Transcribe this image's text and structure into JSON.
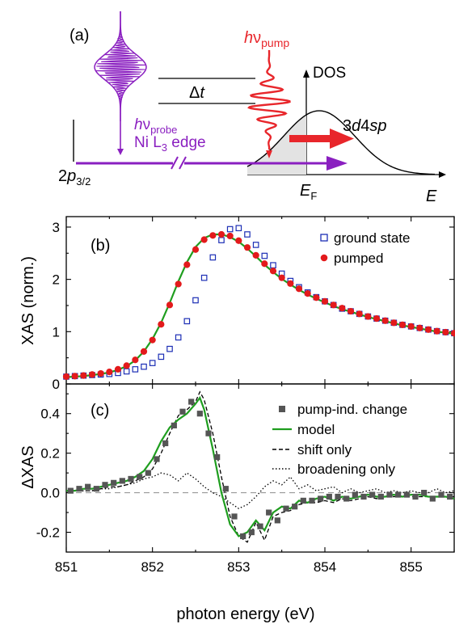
{
  "colors": {
    "pump": "#e8262b",
    "probe": "#8a1fc0",
    "model": "#1f9e1f",
    "ground": "#1c2eb5",
    "pumped_marker": "#e31a1c",
    "change_marker": "#555555",
    "shade": "#e3e3e3"
  },
  "schematic": {
    "panel": "(a)",
    "pump_label_h": "h",
    "pump_label_nu": "ν",
    "pump_label_sub": "pump",
    "probe_label_h": "h",
    "probe_label_nu": "ν",
    "probe_label_sub": "probe",
    "probe_edge_main": "Ni L",
    "probe_edge_sub": "3",
    "probe_edge_tail": " edge",
    "delay_delta": "Δ",
    "delay_t": "t",
    "dos_label": "DOS",
    "band_3": "3",
    "band_d4": "d",
    "band_4": "4",
    "band_sp": "sp",
    "core_2": "2",
    "core_p": "p",
    "core_sub": "3/2",
    "ef_main": "E",
    "ef_sub": "F",
    "e_axis": "E"
  },
  "chart_data": [
    {
      "type": "scatter",
      "panel": "(b)",
      "ylabel": "XAS (norm.)",
      "xlim": [
        851,
        855.5
      ],
      "ylim": [
        0,
        3.2
      ],
      "yticks": [
        "0",
        "1",
        "2",
        "3"
      ],
      "legend_position": "top-right",
      "series": [
        {
          "name": "ground state",
          "marker": "open-square",
          "x": [
            851.0,
            851.1,
            851.2,
            851.3,
            851.4,
            851.5,
            851.6,
            851.7,
            851.8,
            851.9,
            852.0,
            852.1,
            852.2,
            852.3,
            852.4,
            852.5,
            852.6,
            852.7,
            852.8,
            852.9,
            853.0,
            853.1,
            853.2,
            853.3,
            853.4,
            853.5,
            853.6,
            853.7,
            853.8,
            853.9,
            854.0,
            854.1,
            854.2,
            854.3,
            854.4,
            854.5,
            854.6,
            854.7,
            854.8,
            854.9,
            855.0,
            855.1,
            855.2,
            855.3,
            855.4,
            855.5
          ],
          "y": [
            0.14,
            0.15,
            0.16,
            0.17,
            0.18,
            0.19,
            0.21,
            0.24,
            0.28,
            0.33,
            0.4,
            0.52,
            0.67,
            0.89,
            1.2,
            1.6,
            2.03,
            2.42,
            2.75,
            2.96,
            2.98,
            2.86,
            2.66,
            2.45,
            2.27,
            2.11,
            1.97,
            1.85,
            1.75,
            1.66,
            1.58,
            1.51,
            1.44,
            1.39,
            1.34,
            1.29,
            1.25,
            1.21,
            1.17,
            1.13,
            1.1,
            1.07,
            1.04,
            1.01,
            0.99,
            0.97
          ]
        },
        {
          "name": "pumped",
          "marker": "filled-circle",
          "x": [
            851.0,
            851.1,
            851.2,
            851.3,
            851.4,
            851.5,
            851.6,
            851.7,
            851.8,
            851.9,
            852.0,
            852.1,
            852.2,
            852.3,
            852.4,
            852.5,
            852.6,
            852.7,
            852.8,
            852.9,
            853.0,
            853.1,
            853.2,
            853.3,
            853.4,
            853.5,
            853.6,
            853.7,
            853.8,
            853.9,
            854.0,
            854.1,
            854.2,
            854.3,
            854.4,
            854.5,
            854.6,
            854.7,
            854.8,
            854.9,
            855.0,
            855.1,
            855.2,
            855.3,
            855.4,
            855.5
          ],
          "y": [
            0.14,
            0.15,
            0.16,
            0.18,
            0.2,
            0.23,
            0.28,
            0.35,
            0.46,
            0.62,
            0.84,
            1.14,
            1.51,
            1.91,
            2.28,
            2.57,
            2.76,
            2.84,
            2.86,
            2.83,
            2.74,
            2.61,
            2.46,
            2.3,
            2.16,
            2.03,
            1.92,
            1.82,
            1.73,
            1.65,
            1.58,
            1.51,
            1.45,
            1.39,
            1.34,
            1.29,
            1.25,
            1.21,
            1.17,
            1.13,
            1.1,
            1.07,
            1.04,
            1.01,
            0.99,
            0.97
          ]
        },
        {
          "name": "model",
          "marker": "line",
          "x": [
            851.0,
            851.1,
            851.2,
            851.3,
            851.4,
            851.5,
            851.6,
            851.7,
            851.8,
            851.9,
            852.0,
            852.1,
            852.2,
            852.3,
            852.4,
            852.5,
            852.6,
            852.7,
            852.8,
            852.9,
            853.0,
            853.1,
            853.2,
            853.3,
            853.4,
            853.5,
            853.6,
            853.7,
            853.8,
            853.9,
            854.0,
            854.1,
            854.2,
            854.3,
            854.4,
            854.5,
            854.6,
            854.7,
            854.8,
            854.9,
            855.0,
            855.1,
            855.2,
            855.3,
            855.4,
            855.5
          ],
          "y": [
            0.13,
            0.14,
            0.15,
            0.17,
            0.19,
            0.22,
            0.27,
            0.34,
            0.45,
            0.62,
            0.86,
            1.17,
            1.55,
            1.96,
            2.33,
            2.62,
            2.79,
            2.86,
            2.86,
            2.81,
            2.72,
            2.59,
            2.44,
            2.28,
            2.14,
            2.01,
            1.9,
            1.8,
            1.71,
            1.63,
            1.56,
            1.49,
            1.43,
            1.38,
            1.33,
            1.28,
            1.24,
            1.2,
            1.16,
            1.12,
            1.09,
            1.06,
            1.03,
            1.0,
            0.98,
            0.96
          ]
        }
      ]
    },
    {
      "type": "line",
      "panel": "(c)",
      "xlabel": "photon energy (eV)",
      "ylabel": "ΔXAS",
      "xlim": [
        851,
        855.5
      ],
      "ylim": [
        -0.3,
        0.55
      ],
      "xticks": [
        "851",
        "852",
        "853",
        "854",
        "855"
      ],
      "yticks": [
        "-0.2",
        "0.0",
        "0.2",
        "0.4"
      ],
      "legend_position": "top-right",
      "series": [
        {
          "name": "pump-ind. change",
          "marker": "filled-square",
          "x": [
            851.05,
            851.15,
            851.25,
            851.35,
            851.45,
            851.55,
            851.65,
            851.75,
            851.85,
            851.95,
            852.05,
            852.15,
            852.25,
            852.35,
            852.45,
            852.55,
            852.65,
            852.75,
            852.85,
            852.95,
            853.05,
            853.15,
            853.25,
            853.35,
            853.45,
            853.55,
            853.65,
            853.75,
            853.85,
            853.95,
            854.05,
            854.15,
            854.25,
            854.35,
            854.45,
            854.55,
            854.65,
            854.75,
            854.85,
            854.95,
            855.05,
            855.15,
            855.25,
            855.35,
            855.45
          ],
          "y": [
            0.01,
            0.02,
            0.03,
            0.02,
            0.04,
            0.05,
            0.06,
            0.07,
            0.08,
            0.1,
            0.17,
            0.25,
            0.34,
            0.41,
            0.46,
            0.4,
            0.3,
            0.18,
            0.02,
            -0.12,
            -0.22,
            -0.2,
            -0.17,
            -0.1,
            -0.14,
            -0.08,
            -0.07,
            -0.04,
            -0.04,
            -0.03,
            -0.02,
            -0.02,
            -0.03,
            -0.01,
            -0.02,
            -0.01,
            -0.02,
            -0.01,
            -0.01,
            -0.01,
            -0.02,
            0.0,
            -0.03,
            -0.01,
            -0.02
          ]
        },
        {
          "name": "model",
          "marker": "line",
          "x": [
            851.0,
            851.1,
            851.2,
            851.3,
            851.4,
            851.5,
            851.6,
            851.7,
            851.8,
            851.9,
            852.0,
            852.1,
            852.2,
            852.3,
            852.4,
            852.5,
            852.55,
            852.6,
            852.7,
            852.8,
            852.9,
            853.0,
            853.1,
            853.2,
            853.3,
            853.4,
            853.5,
            853.6,
            853.7,
            853.8,
            853.9,
            854.0,
            854.1,
            854.2,
            854.3,
            854.4,
            854.5,
            854.6,
            854.7,
            854.8,
            854.9,
            855.0,
            855.1,
            855.2,
            855.3,
            855.4,
            855.5
          ],
          "y": [
            0.01,
            0.01,
            0.02,
            0.02,
            0.03,
            0.04,
            0.05,
            0.06,
            0.08,
            0.11,
            0.17,
            0.26,
            0.33,
            0.37,
            0.4,
            0.45,
            0.48,
            0.42,
            0.22,
            0.0,
            -0.16,
            -0.22,
            -0.2,
            -0.14,
            -0.19,
            -0.1,
            -0.07,
            -0.08,
            -0.04,
            -0.05,
            -0.03,
            -0.02,
            -0.04,
            -0.02,
            -0.03,
            -0.02,
            -0.01,
            -0.02,
            -0.02,
            -0.01,
            -0.02,
            -0.01,
            -0.01,
            -0.02,
            -0.02,
            -0.02,
            -0.03
          ]
        },
        {
          "name": "shift only",
          "marker": "dashed",
          "x": [
            851.0,
            851.1,
            851.2,
            851.3,
            851.4,
            851.5,
            851.6,
            851.7,
            851.8,
            851.9,
            852.0,
            852.1,
            852.2,
            852.3,
            852.4,
            852.5,
            852.55,
            852.6,
            852.7,
            852.8,
            852.9,
            853.0,
            853.1,
            853.2,
            853.3,
            853.4,
            853.5,
            853.6,
            853.7,
            853.8,
            853.9,
            854.0,
            854.1,
            854.2,
            854.3,
            854.4,
            854.5,
            854.6,
            854.7,
            854.8,
            854.9,
            855.0,
            855.1,
            855.2,
            855.3,
            855.4,
            855.5
          ],
          "y": [
            0.0,
            0.01,
            0.01,
            0.01,
            0.02,
            0.03,
            0.03,
            0.04,
            0.06,
            0.08,
            0.12,
            0.2,
            0.3,
            0.39,
            0.42,
            0.46,
            0.51,
            0.47,
            0.3,
            0.08,
            -0.12,
            -0.22,
            -0.25,
            -0.15,
            -0.24,
            -0.12,
            -0.1,
            -0.09,
            -0.06,
            -0.05,
            -0.05,
            -0.04,
            -0.05,
            -0.03,
            -0.04,
            -0.03,
            -0.02,
            -0.03,
            -0.02,
            -0.02,
            -0.02,
            -0.02,
            -0.02,
            -0.02,
            -0.02,
            -0.02,
            -0.02
          ]
        },
        {
          "name": "broadening only",
          "marker": "dotted",
          "x": [
            851.0,
            851.1,
            851.2,
            851.3,
            851.4,
            851.5,
            851.6,
            851.7,
            851.8,
            851.9,
            852.0,
            852.1,
            852.2,
            852.3,
            852.4,
            852.5,
            852.6,
            852.7,
            852.8,
            852.9,
            853.0,
            853.1,
            853.2,
            853.3,
            853.4,
            853.5,
            853.6,
            853.7,
            853.8,
            853.9,
            854.0,
            854.1,
            854.2,
            854.3,
            854.4,
            854.5,
            854.6,
            854.7,
            854.8,
            854.9,
            855.0,
            855.1,
            855.2,
            855.3,
            855.4,
            855.5
          ],
          "y": [
            0.01,
            0.01,
            0.01,
            0.01,
            0.02,
            0.02,
            0.03,
            0.04,
            0.05,
            0.07,
            0.08,
            0.1,
            0.09,
            0.06,
            0.1,
            0.07,
            0.03,
            0.0,
            -0.02,
            -0.05,
            -0.08,
            -0.06,
            -0.02,
            0.03,
            0.06,
            0.04,
            0.08,
            0.02,
            0.04,
            0.01,
            0.02,
            0.03,
            0.0,
            0.02,
            0.0,
            0.01,
            0.02,
            0.0,
            0.01,
            0.0,
            0.01,
            0.0,
            0.0,
            0.02,
            0.0,
            0.01
          ]
        }
      ]
    }
  ]
}
